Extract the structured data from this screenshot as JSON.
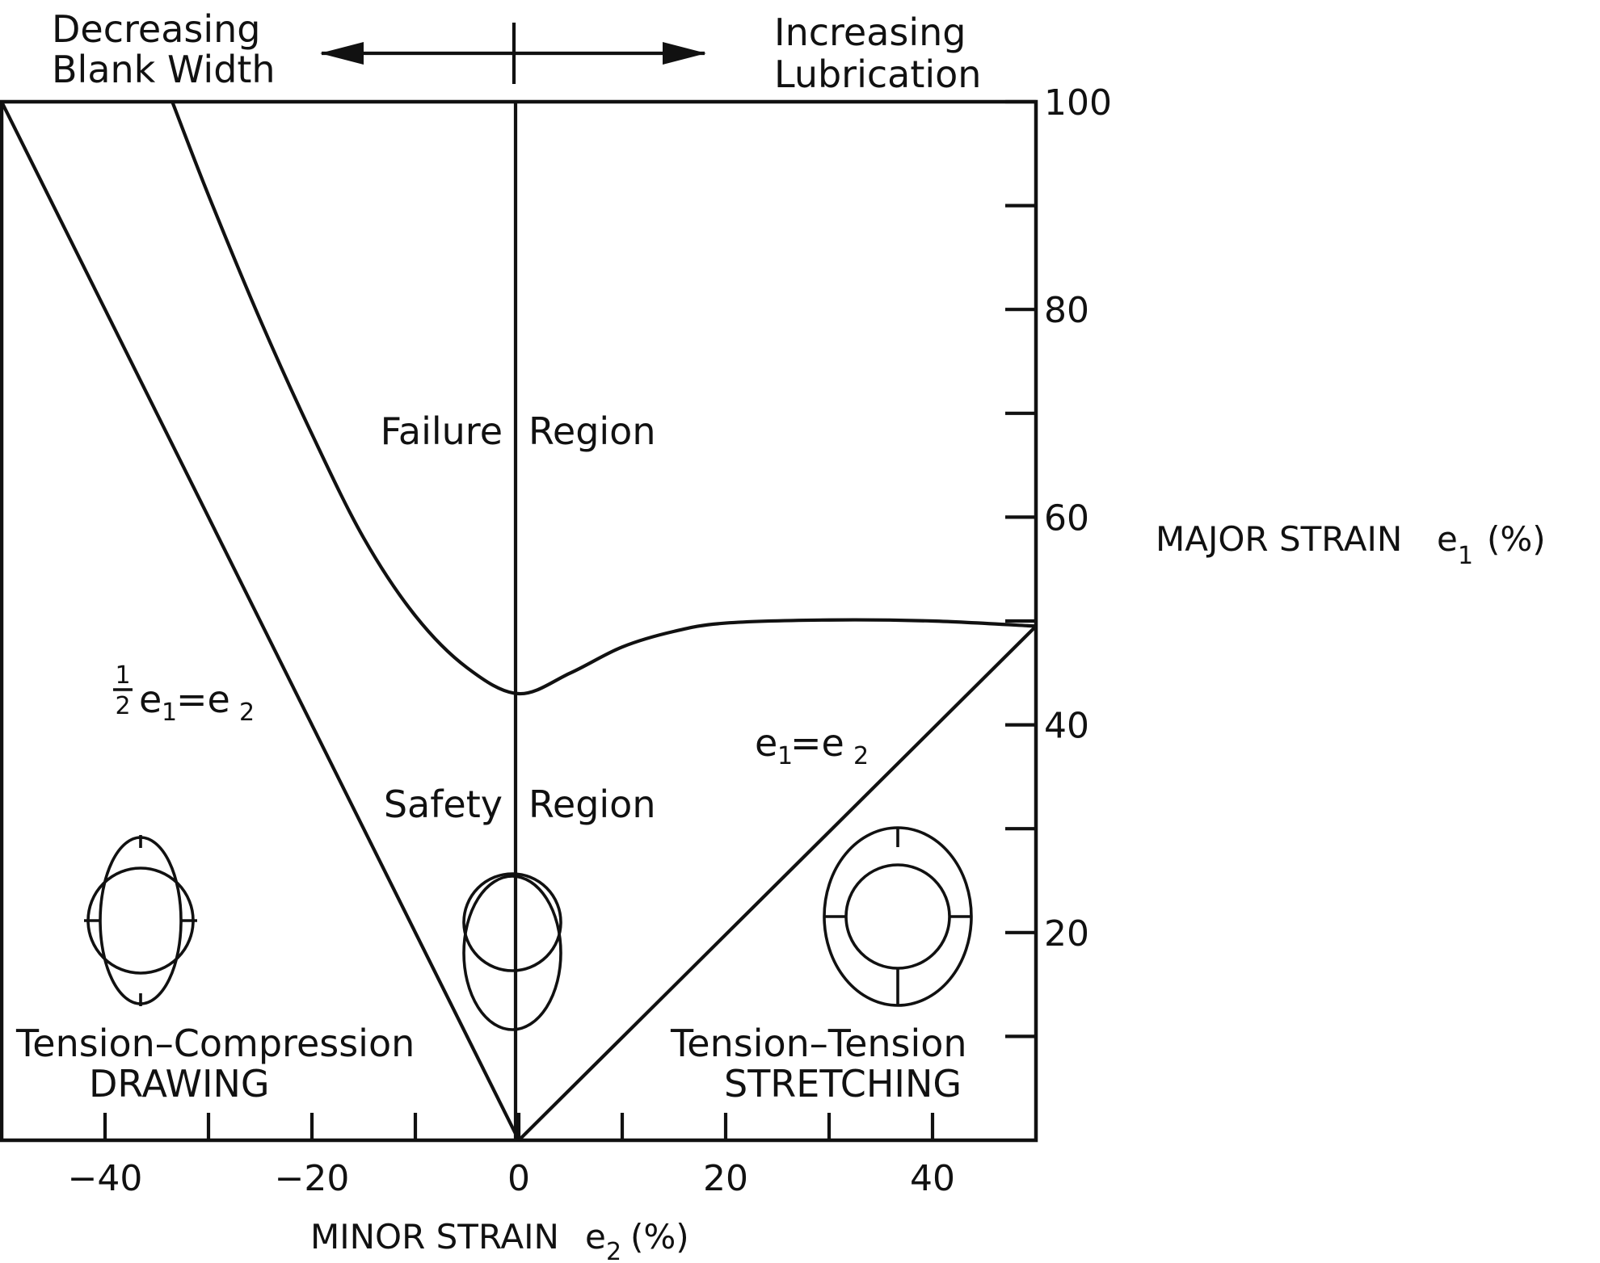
{
  "chart_data": {
    "type": "line",
    "xlabel": "MINOR STRAIN e₂ (%)",
    "ylabel": "MAJOR STRAIN e₁ (%)",
    "xlim": [
      -50,
      50
    ],
    "ylim": [
      0,
      100
    ],
    "x_ticks": [
      -40,
      -30,
      -20,
      -10,
      0,
      10,
      20,
      30,
      40
    ],
    "x_tick_labels": [
      "-40",
      "-20",
      "0",
      "20",
      "40"
    ],
    "y_ticks": [
      10,
      20,
      30,
      40,
      50,
      60,
      70,
      80,
      90,
      100
    ],
    "y_tick_labels": [
      "20",
      "40",
      "60",
      "80",
      "100"
    ],
    "grid": false,
    "series": [
      {
        "role": "forming limit curve",
        "points": [
          [
            -33.5,
            100
          ],
          [
            -30,
            91
          ],
          [
            -25,
            79
          ],
          [
            -20,
            68
          ],
          [
            -15,
            58
          ],
          [
            -10,
            50.5
          ],
          [
            -5,
            45.5
          ],
          [
            0,
            43
          ],
          [
            5,
            45
          ],
          [
            10,
            47.5
          ],
          [
            15,
            49
          ],
          [
            20,
            49.8
          ],
          [
            30,
            50.1
          ],
          [
            40,
            50
          ],
          [
            50,
            49.5
          ]
        ]
      },
      {
        "role": "uniaxial tension line",
        "label": "1/2 e₁ = e₂",
        "points": [
          [
            -50,
            100
          ],
          [
            0,
            0
          ]
        ]
      },
      {
        "role": "equibiaxial line",
        "label": "e₁ = e₂",
        "points": [
          [
            0,
            0
          ],
          [
            50,
            49.5
          ]
        ]
      }
    ],
    "annotations": {
      "top_left_1": "Decreasing",
      "top_left_2": "Blank Width",
      "top_right_1": "Increasing",
      "top_right_2": "Lubrication",
      "failure_left": "Failure",
      "failure_right": "Region",
      "safety_left": "Safety",
      "safety_right": "Region",
      "drawing_1": "Tension–Compression",
      "drawing_2": "DRAWING",
      "stretching_1": "Tension–Tension",
      "stretching_2": "STRETCHING"
    }
  }
}
